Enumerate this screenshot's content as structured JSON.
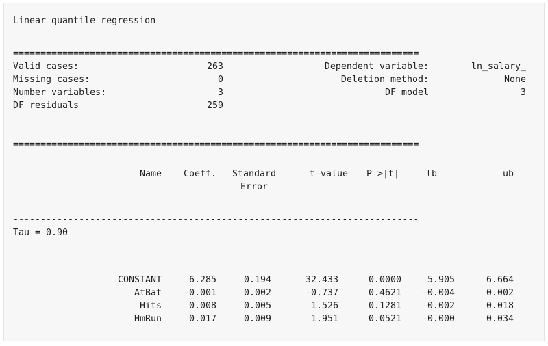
{
  "title": "Linear quantile regression",
  "separator_double": "==========================================================================",
  "separator_single": "--------------------------------------------------------------------------",
  "summary": {
    "left": [
      {
        "label": "Valid cases:",
        "value": "263"
      },
      {
        "label": "Missing cases:",
        "value": "0"
      },
      {
        "label": "Number variables:",
        "value": "3"
      },
      {
        "label": "DF residuals",
        "value": "259"
      }
    ],
    "right": [
      {
        "label": "Dependent variable:",
        "value": "ln_salary_"
      },
      {
        "label": "Deletion method:",
        "value": "None"
      },
      {
        "label": "DF model",
        "value": "3"
      }
    ]
  },
  "table": {
    "headers": [
      "Name",
      "Coeff.",
      "Standard",
      "t-value",
      "P >|t|",
      "lb",
      "ub"
    ],
    "header_line2": "Error",
    "tau_label": "Tau = 0.90",
    "rows": [
      [
        "CONSTANT",
        "6.285",
        "0.194",
        "32.433",
        "0.0000",
        "5.905",
        "6.664"
      ],
      [
        "AtBat",
        "-0.001",
        "0.002",
        "-0.737",
        "0.4621",
        "-0.004",
        "0.002"
      ],
      [
        "Hits",
        "0.008",
        "0.005",
        "1.526",
        "0.1281",
        "-0.002",
        "0.018"
      ],
      [
        "HmRun",
        "0.017",
        "0.009",
        "1.951",
        "0.0521",
        "-0.000",
        "0.034"
      ]
    ]
  }
}
